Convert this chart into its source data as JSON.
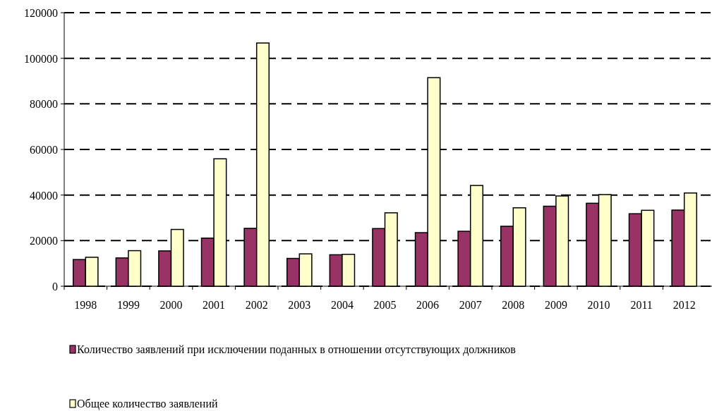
{
  "chart_data": {
    "type": "bar",
    "categories": [
      "1998",
      "1999",
      "2000",
      "2001",
      "2002",
      "2003",
      "2004",
      "2005",
      "2006",
      "2007",
      "2008",
      "2009",
      "2010",
      "2011",
      "2012"
    ],
    "series": [
      {
        "name": "Количество заявлений при исключении поданных в отношении отсутствующих должников",
        "color": "#993366",
        "values": [
          11700,
          12400,
          15500,
          21100,
          25400,
          12200,
          13800,
          25300,
          23500,
          24100,
          26300,
          35100,
          36400,
          31800,
          33400
        ]
      },
      {
        "name": "Общее количество заявлений",
        "color": "#ffffcc",
        "values": [
          12700,
          15600,
          24900,
          55900,
          106700,
          14200,
          14000,
          32200,
          91500,
          44200,
          34400,
          39600,
          40200,
          33300,
          40900
        ]
      }
    ],
    "ylim": [
      0,
      120000
    ],
    "yticks": [
      0,
      20000,
      40000,
      60000,
      80000,
      100000,
      120000
    ],
    "grid": "y",
    "legend": "bottom"
  }
}
